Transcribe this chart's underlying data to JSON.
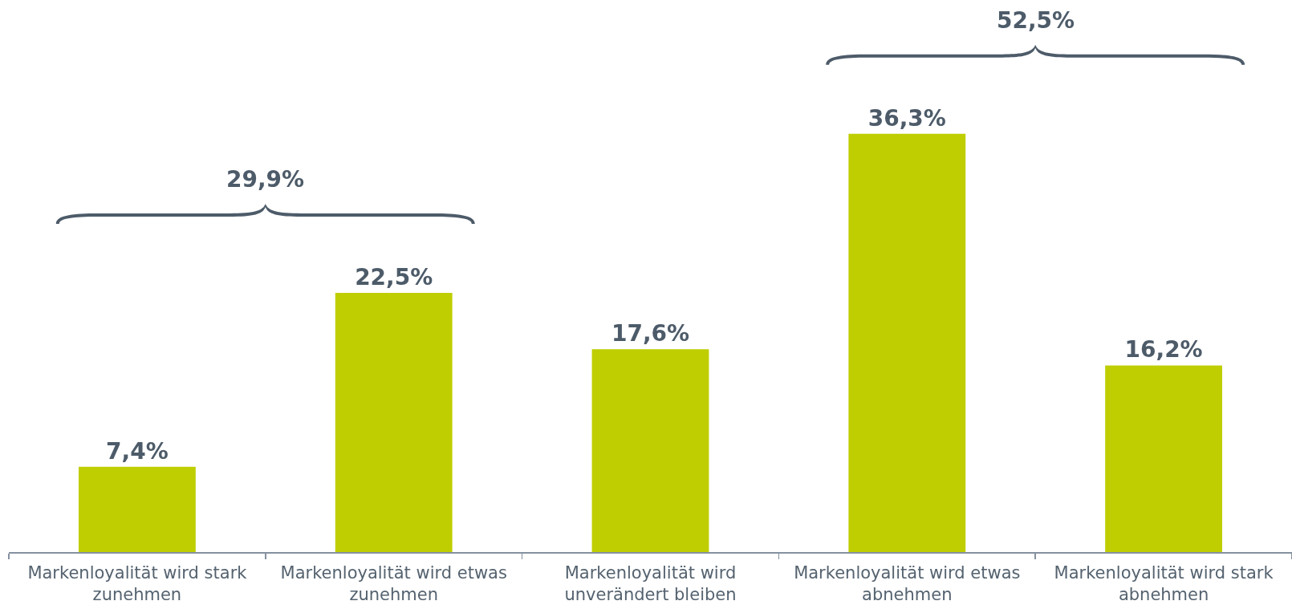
{
  "chart_data": {
    "type": "bar",
    "categories": [
      "Markenloyalität wird stark zunehmen",
      "Markenloyalität wird etwas zunehmen",
      "Markenloyalität wird unverändert bleiben",
      "Markenloyalität wird etwas abnehmen",
      "Markenloyalität wird stark abnehmen"
    ],
    "values": [
      7.4,
      22.5,
      17.6,
      36.3,
      16.2
    ],
    "value_labels": [
      "7,4%",
      "22,5%",
      "17,6%",
      "36,3%",
      "16,2%"
    ],
    "color": "#bfce00",
    "annotations": [
      "29,9%",
      "52,5%"
    ]
  }
}
